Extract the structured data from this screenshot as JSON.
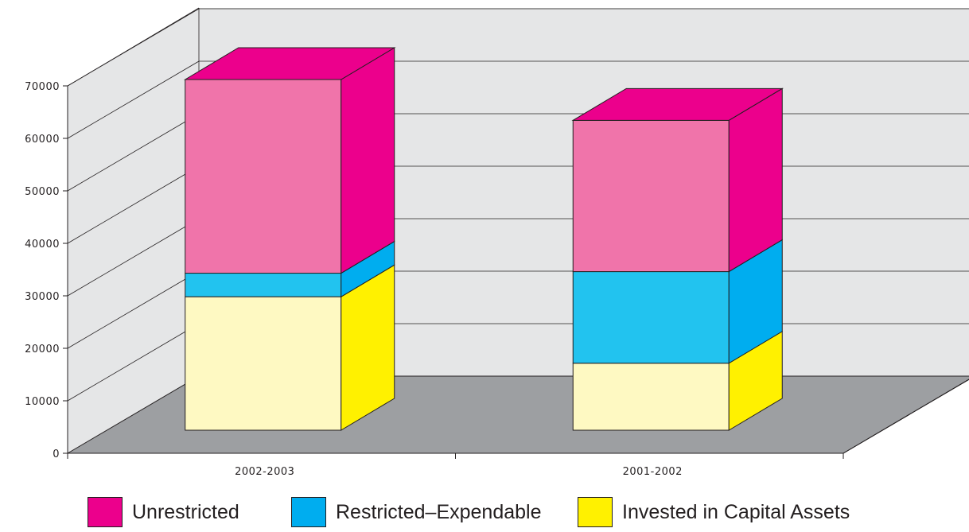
{
  "chart_data": {
    "type": "bar",
    "stacked": true,
    "three_d": true,
    "categories": [
      "2002-2003",
      "2001-2002"
    ],
    "series": [
      {
        "name": "Invested in Capital Assets",
        "values": [
          25500,
          12800
        ],
        "front_color": "#fef9c2",
        "side_color": "#fff100"
      },
      {
        "name": "Restricted–Expendable",
        "values": [
          4500,
          17500
        ],
        "front_color": "#22c3ef",
        "side_color": "#00adef"
      },
      {
        "name": "Unrestricted",
        "values": [
          37000,
          28900
        ],
        "front_color": "#f074aa",
        "side_color": "#ec008c"
      }
    ],
    "ylim": [
      0,
      70000
    ],
    "yticks": [
      "0",
      "10000",
      "20000",
      "30000",
      "40000",
      "50000",
      "60000",
      "70000"
    ],
    "grid": true,
    "legend_position": "bottom"
  },
  "colors": {
    "back_wall": "#e5e6e7",
    "floor": "#9d9fa2",
    "grid": "#231f20"
  }
}
